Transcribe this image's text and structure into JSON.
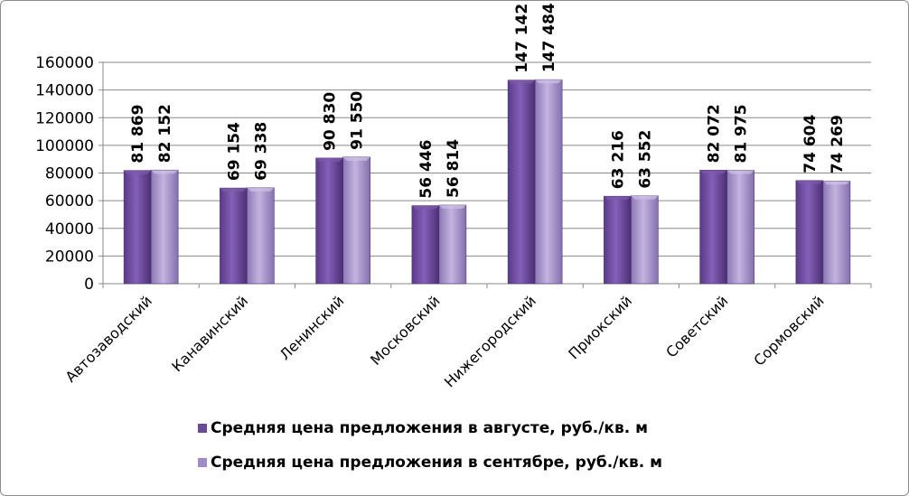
{
  "chart_data": {
    "type": "bar",
    "categories": [
      "Автозаводский",
      "Канавинский",
      "Ленинский",
      "Московский",
      "Нижегородский",
      "Приокский",
      "Советский",
      "Сормовский"
    ],
    "series": [
      {
        "name": "Средняя цена предложения в августе, руб./кв. м",
        "values": [
          81869,
          69154,
          90830,
          56446,
          147142,
          63216,
          82072,
          74604
        ],
        "labels": [
          "81 869",
          "69 154",
          "90 830",
          "56 446",
          "147 142",
          "63 216",
          "82 072",
          "74 604"
        ],
        "color": "#6b4a9a"
      },
      {
        "name": "Средняя цена предложения в сентябре, руб./кв. м",
        "values": [
          82152,
          69338,
          91550,
          56814,
          147484,
          63552,
          81975,
          74269
        ],
        "labels": [
          "82 152",
          "69 338",
          "91 550",
          "56 814",
          "147 484",
          "63 552",
          "81 975",
          "74 269"
        ],
        "color": "#a08cc4"
      }
    ],
    "ylim": [
      0,
      160000
    ],
    "yticks": [
      "0",
      "20000",
      "40000",
      "60000",
      "80000",
      "100000",
      "120000",
      "140000",
      "160000"
    ],
    "grid": true,
    "legend_position": "bottom"
  }
}
